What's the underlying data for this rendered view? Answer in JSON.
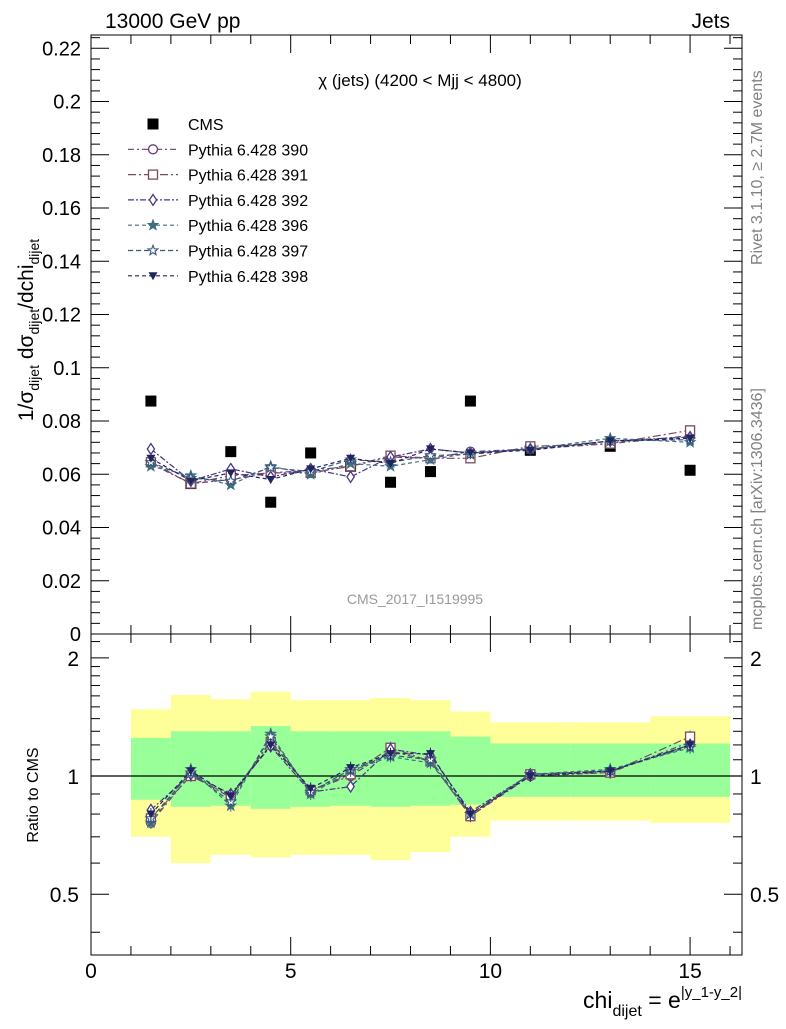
{
  "header": {
    "left": "13000 GeV pp",
    "right": "Jets"
  },
  "side_labels": {
    "top": "Rivet 3.1.10, ≥ 2.7M events",
    "bottom": "mcplots.cern.ch [arXiv:1306.3436]"
  },
  "watermark": "CMS_2017_I1519995",
  "chart_data": [
    {
      "type": "scatter",
      "panel": "main",
      "title": "χ (jets) (4200 < Mjj < 4800)",
      "ylabel": "1/σ_dijet dσ_dijet/dchi_dijet",
      "xlim": [
        0,
        16.3
      ],
      "ylim": [
        0,
        0.225
      ],
      "yticks": [
        0,
        0.02,
        0.04,
        0.06,
        0.08,
        0.1,
        0.12,
        0.14,
        0.16,
        0.18,
        0.2,
        0.22
      ],
      "ytick_labels": [
        "0",
        "0.02",
        "0.04",
        "0.06",
        "0.08",
        "0.1",
        "0.12",
        "0.14",
        "0.16",
        "0.18",
        "0.2",
        "0.22"
      ],
      "legend_position": "top-left",
      "x": [
        1.5,
        2.5,
        3.5,
        4.5,
        5.5,
        6.5,
        7.5,
        8.5,
        9.5,
        11,
        13,
        15
      ],
      "series": [
        {
          "name": "CMS",
          "color": "#000000",
          "marker": "square-filled",
          "values": [
            0.0875,
            0.0565,
            0.0685,
            0.0495,
            0.068,
            0.063,
            0.057,
            0.061,
            0.0875,
            0.069,
            0.0705,
            0.0615
          ]
        },
        {
          "name": "Pythia 6.428 390",
          "color": "#6a3d7a",
          "marker": "circle-open",
          "dash": "6,3,2,3",
          "values": [
            0.064,
            0.0565,
            0.058,
            0.0605,
            0.0615,
            0.063,
            0.0665,
            0.066,
            0.0685,
            0.0695,
            0.0715,
            0.0745
          ]
        },
        {
          "name": "Pythia 6.428 391",
          "color": "#7a4a5e",
          "marker": "square-open",
          "dash": "8,3,2,3",
          "values": [
            0.0645,
            0.0565,
            0.0595,
            0.0605,
            0.0605,
            0.063,
            0.067,
            0.066,
            0.066,
            0.0705,
            0.0715,
            0.0765
          ]
        },
        {
          "name": "Pythia 6.428 392",
          "color": "#4a3585",
          "marker": "diamond-open",
          "dash": "6,2,2,2",
          "values": [
            0.0695,
            0.0575,
            0.062,
            0.059,
            0.062,
            0.059,
            0.0665,
            0.0695,
            0.068,
            0.0695,
            0.0725,
            0.074
          ]
        },
        {
          "name": "Pythia 6.428 396",
          "color": "#3d6e82",
          "marker": "star-filled",
          "dash": "4,3",
          "values": [
            0.063,
            0.0595,
            0.056,
            0.063,
            0.06,
            0.064,
            0.063,
            0.0655,
            0.068,
            0.0695,
            0.0735,
            0.072
          ]
        },
        {
          "name": "Pythia 6.428 397",
          "color": "#3a5878",
          "marker": "star-open",
          "dash": "5,3",
          "values": [
            0.0645,
            0.0585,
            0.0575,
            0.0625,
            0.061,
            0.0655,
            0.0645,
            0.067,
            0.0675,
            0.0695,
            0.0725,
            0.073
          ]
        },
        {
          "name": "Pythia 6.428 398",
          "color": "#1f2560",
          "marker": "triangle-down-filled",
          "dash": "4,3",
          "values": [
            0.066,
            0.0575,
            0.0605,
            0.058,
            0.062,
            0.066,
            0.064,
            0.0695,
            0.068,
            0.069,
            0.0725,
            0.0735
          ]
        }
      ]
    },
    {
      "type": "scatter",
      "panel": "ratio",
      "xlabel": "chi_dijet = e^|y_1-y_2|",
      "ylabel": "Ratio to CMS",
      "xlim": [
        0,
        16.3
      ],
      "ylim": [
        0.35,
        2.3
      ],
      "y_scale": "log",
      "yticks": [
        0.5,
        1,
        2
      ],
      "ytick_labels": [
        "0.5",
        "1",
        "2"
      ],
      "xticks": [
        0,
        5,
        10,
        15
      ],
      "xtick_labels": [
        "0",
        "5",
        "10",
        "15"
      ],
      "reference_line": 1,
      "uncertainty_bands": {
        "bin_edges": [
          1,
          2,
          3,
          4,
          5,
          6,
          7,
          8,
          9,
          10,
          12,
          14,
          16
        ],
        "inner": {
          "color": "#99ff99",
          "low": [
            0.87,
            0.835,
            0.84,
            0.825,
            0.835,
            0.84,
            0.835,
            0.84,
            0.845,
            0.885,
            0.885,
            0.885
          ],
          "high": [
            1.25,
            1.3,
            1.3,
            1.34,
            1.3,
            1.3,
            1.3,
            1.3,
            1.26,
            1.21,
            1.21,
            1.21
          ]
        },
        "outer": {
          "color": "#ffff99",
          "low": [
            0.7,
            0.6,
            0.63,
            0.62,
            0.63,
            0.63,
            0.61,
            0.64,
            0.7,
            0.77,
            0.77,
            0.76
          ],
          "high": [
            1.48,
            1.61,
            1.57,
            1.64,
            1.56,
            1.56,
            1.58,
            1.56,
            1.46,
            1.37,
            1.37,
            1.42
          ]
        }
      },
      "x": [
        1.5,
        2.5,
        3.5,
        4.5,
        5.5,
        6.5,
        7.5,
        8.5,
        9.5,
        11,
        13,
        15
      ],
      "series": [
        {
          "name": "Pythia 6.428 390",
          "color": "#6a3d7a",
          "marker": "circle-open",
          "values": [
            0.76,
            1.01,
            0.88,
            1.23,
            0.92,
            1.0,
            1.16,
            1.09,
            0.79,
            1.0,
            1.02,
            1.22
          ]
        },
        {
          "name": "Pythia 6.428 391",
          "color": "#7a4a5e",
          "marker": "square-open",
          "values": [
            0.78,
            1.0,
            0.89,
            1.22,
            0.92,
            1.01,
            1.18,
            1.09,
            0.79,
            1.01,
            1.02,
            1.26
          ]
        },
        {
          "name": "Pythia 6.428 392",
          "color": "#4a3585",
          "marker": "diamond-open",
          "values": [
            0.82,
            1.01,
            0.9,
            1.19,
            0.91,
            0.94,
            1.17,
            1.13,
            0.81,
            1.01,
            1.03,
            1.2
          ]
        },
        {
          "name": "Pythia 6.428 396",
          "color": "#3d6e82",
          "marker": "star-filled",
          "values": [
            0.76,
            1.04,
            0.84,
            1.28,
            0.9,
            1.03,
            1.12,
            1.08,
            0.8,
            1.01,
            1.04,
            1.18
          ]
        },
        {
          "name": "Pythia 6.428 397",
          "color": "#3a5878",
          "marker": "star-open",
          "values": [
            0.78,
            1.02,
            0.86,
            1.26,
            0.91,
            1.04,
            1.13,
            1.1,
            0.8,
            1.01,
            1.03,
            1.19
          ]
        },
        {
          "name": "Pythia 6.428 398",
          "color": "#1f2560",
          "marker": "triangle-down-filled",
          "values": [
            0.8,
            1.03,
            0.89,
            1.2,
            0.93,
            1.05,
            1.14,
            1.14,
            0.8,
            1.0,
            1.03,
            1.2
          ]
        }
      ]
    }
  ]
}
